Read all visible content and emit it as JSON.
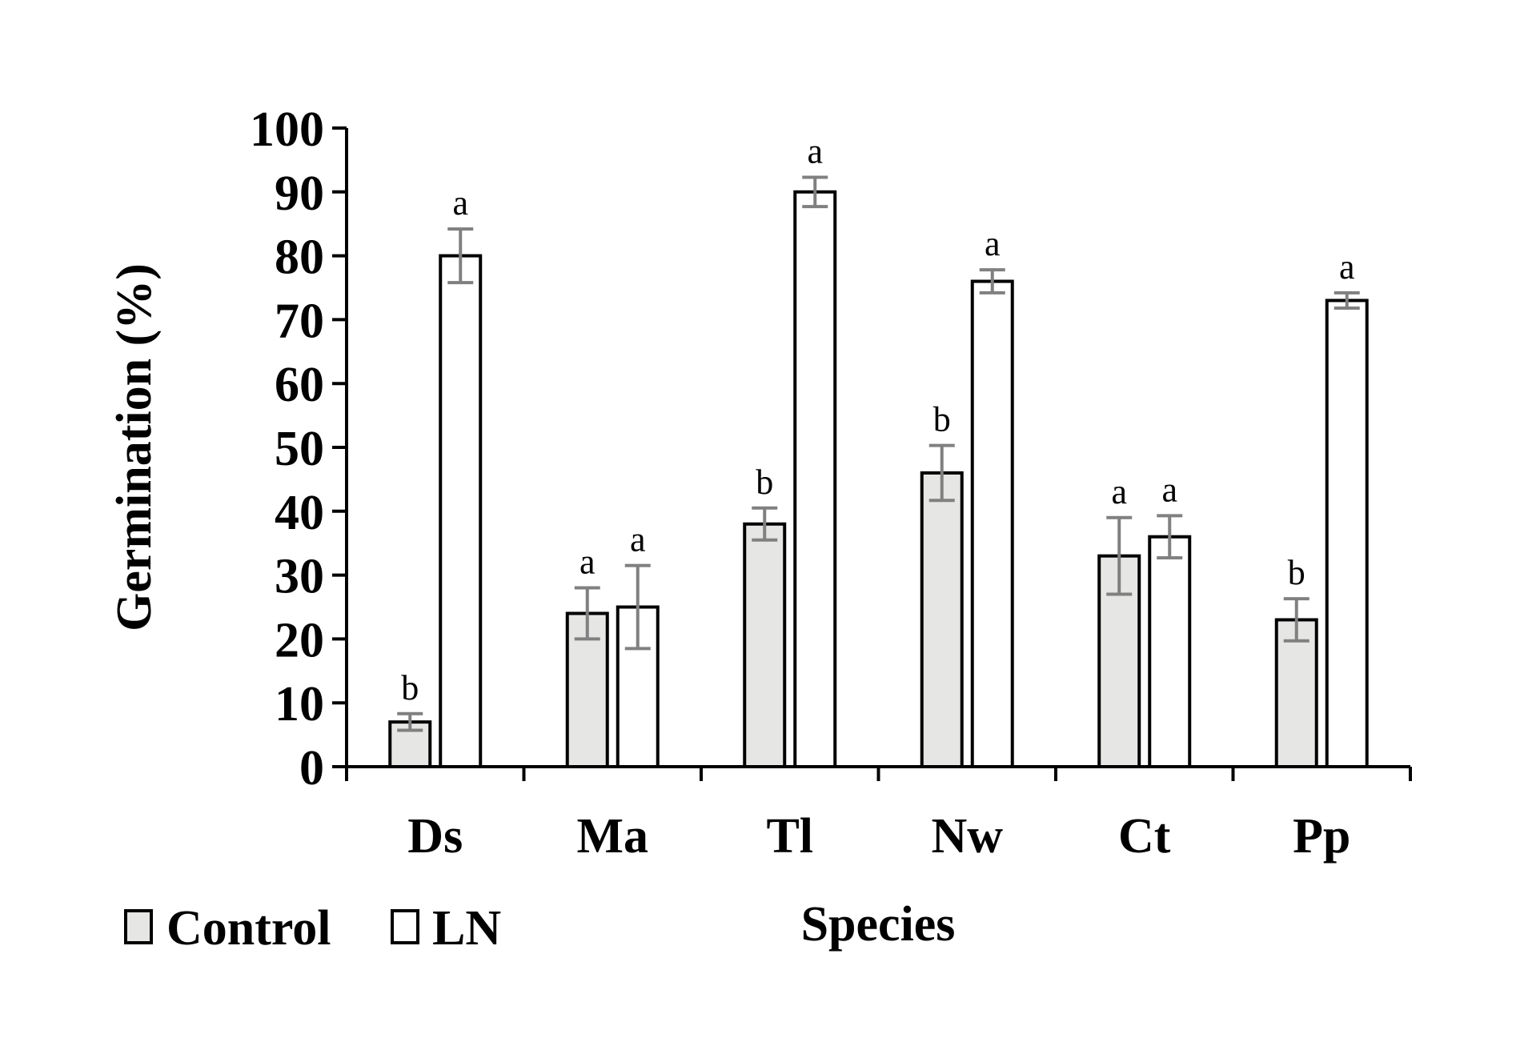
{
  "chart_data": {
    "type": "bar",
    "title": "",
    "xlabel": "Species",
    "ylabel": "Germination (%)",
    "ylim": [
      0,
      100
    ],
    "yticks": [
      0,
      10,
      20,
      30,
      40,
      50,
      60,
      70,
      80,
      90,
      100
    ],
    "categories": [
      "Ds",
      "Ma",
      "Tl",
      "Nw",
      "Ct",
      "Pp"
    ],
    "legend_position": "bottom-left",
    "series": [
      {
        "name": "Control",
        "color": "#e6e6e4",
        "values": [
          7,
          24,
          38,
          46,
          33,
          23
        ],
        "errors": [
          1.3,
          4,
          2.5,
          4.3,
          6,
          3.3
        ],
        "letters": [
          "b",
          "a",
          "b",
          "b",
          "a",
          "b"
        ]
      },
      {
        "name": "LN",
        "color": "#ffffff",
        "values": [
          80,
          25,
          90,
          76,
          36,
          73
        ],
        "errors": [
          4.2,
          6.5,
          2.3,
          1.8,
          3.3,
          1.2
        ],
        "letters": [
          "a",
          "a",
          "a",
          "a",
          "a",
          "a"
        ]
      }
    ]
  }
}
